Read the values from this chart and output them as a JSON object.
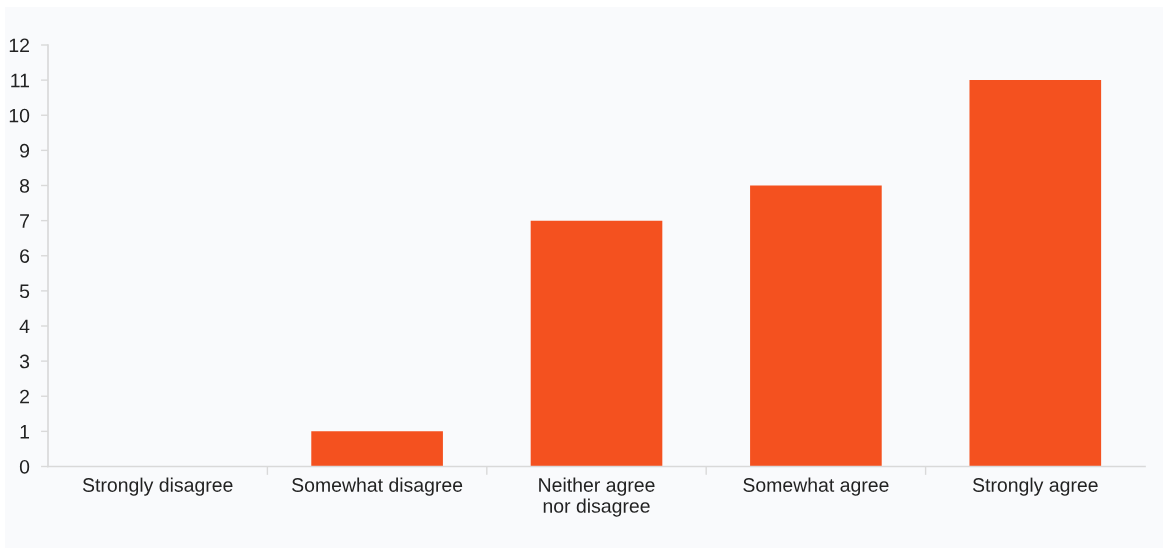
{
  "chart_data": {
    "type": "bar",
    "categories": [
      "Strongly disagree",
      "Somewhat disagree",
      "Neither agree\nnor disagree",
      "Somewhat agree",
      "Strongly agree"
    ],
    "values": [
      0,
      1,
      7,
      8,
      11
    ],
    "color": "#f4511f",
    "ylim": [
      0,
      12
    ],
    "yticks": [
      0,
      1,
      2,
      3,
      4,
      5,
      6,
      7,
      8,
      9,
      10,
      11,
      12
    ]
  }
}
